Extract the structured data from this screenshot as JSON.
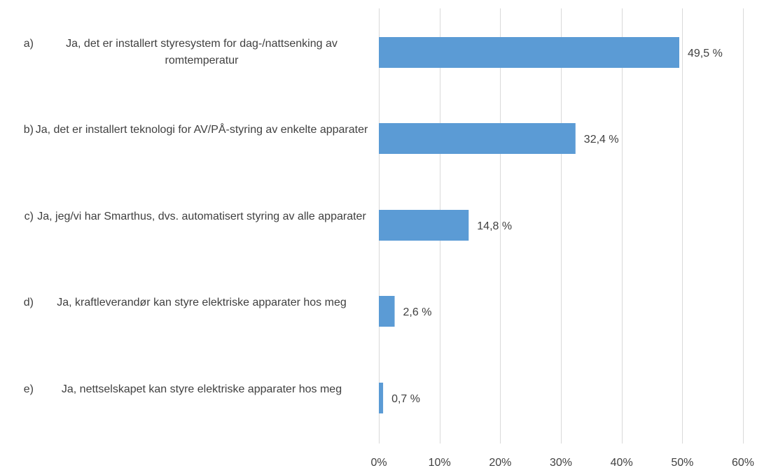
{
  "chart_data": {
    "type": "bar",
    "orientation": "horizontal",
    "categories": [
      {
        "letter": "a)",
        "text": "Ja, det er installert styresystem for dag-/nattsenking av romtemperatur"
      },
      {
        "letter": "b)",
        "text": "Ja, det er installert teknologi for AV/PÅ-styring av enkelte apparater"
      },
      {
        "letter": "c)",
        "text": "Ja, jeg/vi har Smarthus, dvs. automatisert styring av alle apparater"
      },
      {
        "letter": "d)",
        "text": "Ja, kraftleverandør kan styre elektriske apparater hos meg"
      },
      {
        "letter": "e)",
        "text": "Ja, nettselskapet kan styre elektriske apparater hos meg"
      }
    ],
    "values": [
      49.5,
      32.4,
      14.8,
      2.6,
      0.7
    ],
    "data_labels": [
      "49,5 %",
      "32,4 %",
      "14,8 %",
      "2,6 %",
      "0,7 %"
    ],
    "xlim": [
      0,
      60
    ],
    "x_ticks": [
      0,
      10,
      20,
      30,
      40,
      50,
      60
    ],
    "x_tick_labels": [
      "0%",
      "10%",
      "20%",
      "30%",
      "40%",
      "50%",
      "60%"
    ],
    "grid": true,
    "legend": false,
    "colors": {
      "bar": "#5b9bd5",
      "grid": "#d9d9d9",
      "text": "#404040"
    }
  }
}
